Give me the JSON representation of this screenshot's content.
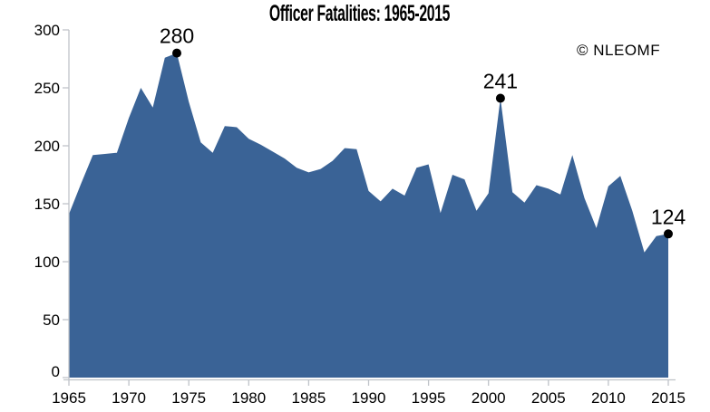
{
  "header": {
    "title": "Officer Fatalities: 1965-2015",
    "copyright": "© NLEOMF"
  },
  "chart_data": {
    "type": "area",
    "title": "Officer Fatalities: 1965-2015",
    "source_label": "© NLEOMF",
    "x": [
      1965,
      1966,
      1967,
      1968,
      1969,
      1970,
      1971,
      1972,
      1973,
      1974,
      1975,
      1976,
      1977,
      1978,
      1979,
      1980,
      1981,
      1982,
      1983,
      1984,
      1985,
      1986,
      1987,
      1988,
      1989,
      1990,
      1991,
      1992,
      1993,
      1994,
      1995,
      1996,
      1997,
      1998,
      1999,
      2000,
      2001,
      2002,
      2003,
      2004,
      2005,
      2006,
      2007,
      2008,
      2009,
      2010,
      2011,
      2012,
      2013,
      2014,
      2015
    ],
    "values": [
      141,
      167,
      192,
      193,
      194,
      224,
      250,
      233,
      276,
      280,
      238,
      203,
      194,
      217,
      216,
      206,
      201,
      195,
      189,
      181,
      177,
      180,
      187,
      198,
      197,
      161,
      152,
      163,
      157,
      181,
      184,
      142,
      175,
      171,
      144,
      159,
      241,
      160,
      151,
      166,
      163,
      158,
      192,
      155,
      129,
      165,
      174,
      144,
      108,
      122,
      124
    ],
    "xlabel": "",
    "ylabel": "",
    "xlim": [
      1965,
      2015
    ],
    "ylim": [
      0,
      300
    ],
    "x_ticks": [
      1965,
      1970,
      1975,
      1980,
      1985,
      1990,
      1995,
      2000,
      2005,
      2010,
      2015
    ],
    "y_ticks": [
      0,
      50,
      100,
      150,
      200,
      250,
      300
    ],
    "grid": false,
    "legend": "none",
    "annotations": [
      {
        "x": 1974,
        "y": 280,
        "label": "280"
      },
      {
        "x": 2001,
        "y": 241,
        "label": "241"
      },
      {
        "x": 2015,
        "y": 124,
        "label": "124"
      }
    ],
    "colors": {
      "fill": "#3A6396",
      "axis": "#BFC3C9",
      "text": "#000000",
      "marker": "#000000"
    }
  }
}
